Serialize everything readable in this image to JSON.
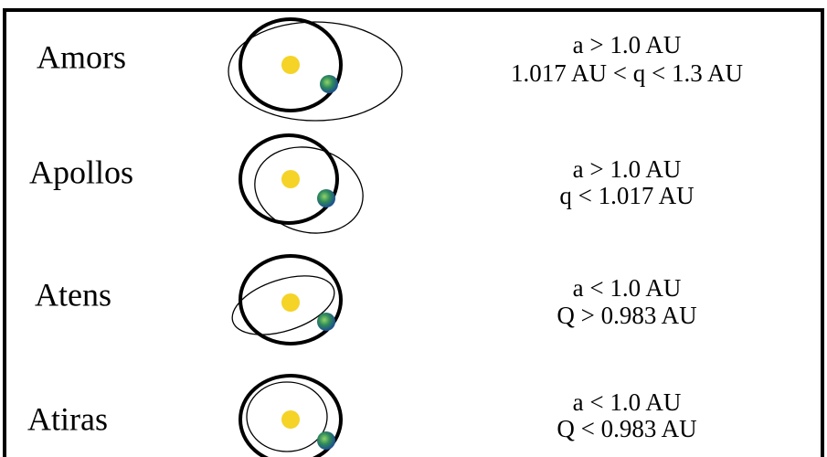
{
  "groups": [
    {
      "name": "Amors",
      "criteria": [
        "a > 1.0 AU",
        "1.017 AU < q < 1.3 AU"
      ]
    },
    {
      "name": "Apollos",
      "criteria": [
        "a > 1.0 AU",
        "q < 1.017 AU"
      ]
    },
    {
      "name": "Atens",
      "criteria": [
        "a < 1.0 AU",
        "Q > 0.983 AU"
      ]
    },
    {
      "name": "Atiras",
      "criteria": [
        "a < 1.0 AU",
        "Q < 0.983 AU"
      ]
    }
  ]
}
